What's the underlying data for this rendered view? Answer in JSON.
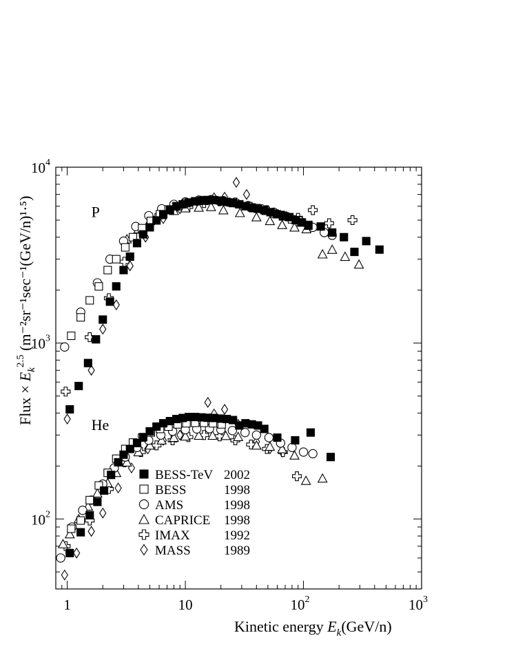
{
  "chart_data": {
    "type": "scatter",
    "title": "",
    "xlabel": {
      "text": "Kinetic energy",
      "var": "E",
      "sub": "k",
      "unit": "(GeV/n)"
    },
    "ylabel": {
      "prefix": "Flux × E",
      "sub": "k",
      "sup": "2.5",
      "units": "(m⁻²sr⁻¹sec⁻¹(GeV/n)¹·⁵)"
    },
    "x_scale": "log",
    "y_scale": "log",
    "xlim": [
      0.8,
      1000
    ],
    "ylim": [
      40,
      10000
    ],
    "x_tick_labels": [
      {
        "value": 1,
        "base": "1",
        "exp": ""
      },
      {
        "value": 10,
        "base": "10",
        "exp": ""
      },
      {
        "value": 100,
        "base": "10",
        "exp": "2"
      },
      {
        "value": 1000,
        "base": "10",
        "exp": "3"
      }
    ],
    "y_tick_labels": [
      {
        "value": 100,
        "base": "10",
        "exp": "2"
      },
      {
        "value": 1000,
        "base": "10",
        "exp": "3"
      },
      {
        "value": 10000,
        "base": "10",
        "exp": "4"
      }
    ],
    "grid": false,
    "legend_position": "lower-left",
    "annotations": [
      {
        "text": "P",
        "x": 1.6,
        "y": 5200
      },
      {
        "text": "He",
        "x": 1.6,
        "y": 320
      }
    ],
    "series": [
      {
        "name": "BESS-TeV",
        "year": "2002",
        "marker": "filled-square",
        "points": [
          [
            1.05,
            420
          ],
          [
            1.25,
            570
          ],
          [
            1.5,
            770
          ],
          [
            1.75,
            1050
          ],
          [
            2.0,
            1360
          ],
          [
            2.3,
            1720
          ],
          [
            2.6,
            2100
          ],
          [
            3.0,
            2600
          ],
          [
            3.4,
            3100
          ],
          [
            3.9,
            3700
          ],
          [
            4.4,
            4150
          ],
          [
            5.0,
            4550
          ],
          [
            5.7,
            4980
          ],
          [
            6.5,
            5400
          ],
          [
            7.4,
            5700
          ],
          [
            8.4,
            6000
          ],
          [
            9.5,
            6150
          ],
          [
            10.7,
            6300
          ],
          [
            12.1,
            6400
          ],
          [
            13.7,
            6450
          ],
          [
            15.5,
            6500
          ],
          [
            17.5,
            6500
          ],
          [
            19.8,
            6450
          ],
          [
            22.4,
            6350
          ],
          [
            25.3,
            6250
          ],
          [
            28.6,
            6150
          ],
          [
            32.3,
            6000
          ],
          [
            36.5,
            5900
          ],
          [
            41.2,
            5800
          ],
          [
            46.6,
            5700
          ],
          [
            52.6,
            5550
          ],
          [
            59.5,
            5400
          ],
          [
            67.2,
            5300
          ],
          [
            76,
            5200
          ],
          [
            86,
            5000
          ],
          [
            97,
            4850
          ],
          [
            110,
            4650
          ],
          [
            140,
            4600
          ],
          [
            175,
            4250
          ],
          [
            220,
            4000
          ],
          [
            270,
            3300
          ],
          [
            340,
            3800
          ],
          [
            440,
            3400
          ],
          [
            1.05,
            64
          ],
          [
            1.3,
            84
          ],
          [
            1.55,
            105
          ],
          [
            1.8,
            125
          ],
          [
            2.05,
            145
          ],
          [
            2.35,
            178
          ],
          [
            2.7,
            210
          ],
          [
            3.0,
            232
          ],
          [
            3.4,
            250
          ],
          [
            3.9,
            270
          ],
          [
            4.4,
            292
          ],
          [
            5.0,
            315
          ],
          [
            5.7,
            335
          ],
          [
            6.5,
            350
          ],
          [
            7.4,
            360
          ],
          [
            8.4,
            370
          ],
          [
            9.5,
            375
          ],
          [
            10.7,
            380
          ],
          [
            12.1,
            380
          ],
          [
            13.7,
            378
          ],
          [
            15.5,
            376
          ],
          [
            17.5,
            375
          ],
          [
            19.8,
            372
          ],
          [
            22.4,
            370
          ],
          [
            25.3,
            365
          ],
          [
            28.6,
            340
          ],
          [
            32.3,
            350
          ],
          [
            36.5,
            345
          ],
          [
            41.2,
            340
          ],
          [
            46.6,
            325
          ],
          [
            60,
            290
          ],
          [
            85,
            280
          ],
          [
            115,
            310
          ],
          [
            170,
            225
          ]
        ]
      },
      {
        "name": "BESS",
        "year": "1998",
        "marker": "open-square",
        "points": [
          [
            1.08,
            1100
          ],
          [
            1.3,
            1400
          ],
          [
            1.55,
            1750
          ],
          [
            1.85,
            2100
          ],
          [
            2.2,
            2600
          ],
          [
            2.6,
            3000
          ],
          [
            3.1,
            3500
          ],
          [
            3.6,
            4000
          ],
          [
            4.3,
            4500
          ],
          [
            5.1,
            4950
          ],
          [
            6.1,
            5400
          ],
          [
            7.2,
            5750
          ],
          [
            8.6,
            6000
          ],
          [
            10.2,
            6250
          ],
          [
            12.1,
            6400
          ],
          [
            14.4,
            6500
          ],
          [
            17.1,
            6500
          ],
          [
            20.3,
            6400
          ],
          [
            24.1,
            6300
          ],
          [
            28.6,
            6150
          ],
          [
            34,
            6000
          ],
          [
            40,
            5850
          ],
          [
            48,
            5650
          ],
          [
            57,
            5450
          ],
          [
            67,
            5250
          ],
          [
            80,
            5050
          ],
          [
            95,
            4850
          ],
          [
            110,
            4700
          ],
          [
            1.08,
            88
          ],
          [
            1.3,
            98
          ],
          [
            1.55,
            128
          ],
          [
            1.85,
            155
          ],
          [
            2.2,
            183
          ],
          [
            2.6,
            220
          ],
          [
            3.1,
            250
          ],
          [
            3.6,
            272
          ],
          [
            4.3,
            290
          ],
          [
            5.1,
            310
          ],
          [
            6.1,
            325
          ],
          [
            7.2,
            335
          ],
          [
            8.6,
            345
          ],
          [
            10.2,
            350
          ],
          [
            12.1,
            352
          ],
          [
            14.4,
            352
          ],
          [
            17.1,
            350
          ],
          [
            20.3,
            345
          ]
        ]
      },
      {
        "name": "AMS",
        "year": "1998",
        "marker": "open-circle",
        "points": [
          [
            0.95,
            950
          ],
          [
            1.3,
            1500
          ],
          [
            1.8,
            2200
          ],
          [
            2.3,
            3000
          ],
          [
            3.0,
            3800
          ],
          [
            3.8,
            4600
          ],
          [
            4.9,
            5300
          ],
          [
            6.3,
            5800
          ],
          [
            8.0,
            6150
          ],
          [
            10,
            6350
          ],
          [
            13,
            6500
          ],
          [
            16.5,
            6550
          ],
          [
            21,
            6450
          ],
          [
            27,
            6250
          ],
          [
            34,
            6050
          ],
          [
            44,
            5800
          ],
          [
            56,
            5550
          ],
          [
            72,
            5250
          ],
          [
            93,
            4950
          ],
          [
            120,
            4550
          ],
          [
            150,
            4250
          ],
          [
            175,
            4100
          ],
          [
            0.88,
            60
          ],
          [
            1.1,
            90
          ],
          [
            1.35,
            112
          ],
          [
            1.6,
            128
          ],
          [
            2.0,
            158
          ],
          [
            2.5,
            195
          ],
          [
            3.1,
            225
          ],
          [
            3.9,
            255
          ],
          [
            4.9,
            280
          ],
          [
            6.2,
            300
          ],
          [
            7.8,
            315
          ],
          [
            10,
            322
          ],
          [
            12.5,
            325
          ],
          [
            16,
            326
          ],
          [
            20,
            322
          ],
          [
            25,
            318
          ],
          [
            32,
            310
          ],
          [
            40,
            300
          ],
          [
            51,
            290
          ],
          [
            64,
            270
          ],
          [
            80,
            255
          ],
          [
            100,
            240
          ],
          [
            120,
            235
          ]
        ]
      },
      {
        "name": "CAPRICE",
        "year": "1998",
        "marker": "open-triangle",
        "points": [
          [
            3.2,
            3900
          ],
          [
            4.0,
            4450
          ],
          [
            5.0,
            4950
          ],
          [
            6.3,
            5350
          ],
          [
            8.0,
            5650
          ],
          [
            10,
            5850
          ],
          [
            13,
            5900
          ],
          [
            16.5,
            5950
          ],
          [
            21,
            5700
          ],
          [
            29,
            5500
          ],
          [
            40,
            5200
          ],
          [
            52,
            4950
          ],
          [
            66,
            4700
          ],
          [
            84,
            4550
          ],
          [
            106,
            4450
          ],
          [
            145,
            3200
          ],
          [
            175,
            3400
          ],
          [
            225,
            3100
          ],
          [
            295,
            2800
          ],
          [
            0.92,
            72
          ],
          [
            1.05,
            82
          ],
          [
            1.25,
            100
          ],
          [
            1.5,
            118
          ],
          [
            1.8,
            140
          ],
          [
            2.2,
            160
          ],
          [
            2.6,
            183
          ],
          [
            3.2,
            210
          ],
          [
            4.0,
            240
          ],
          [
            5.0,
            262
          ],
          [
            6.3,
            280
          ],
          [
            8.0,
            290
          ],
          [
            10,
            295
          ],
          [
            13,
            298
          ],
          [
            17,
            298
          ],
          [
            22,
            297
          ],
          [
            28,
            293
          ],
          [
            40,
            262
          ],
          [
            52,
            258
          ],
          [
            66,
            250
          ],
          [
            84,
            230
          ],
          [
            105,
            165
          ],
          [
            145,
            170
          ]
        ]
      },
      {
        "name": "IMAX",
        "year": "1992",
        "marker": "open-cross",
        "points": [
          [
            0.97,
            530
          ],
          [
            1.55,
            1080
          ],
          [
            2.25,
            1800
          ],
          [
            3.05,
            2900
          ],
          [
            4.2,
            4300
          ],
          [
            5.7,
            5150
          ],
          [
            7.8,
            5700
          ],
          [
            10.6,
            5950
          ],
          [
            14.4,
            6250
          ],
          [
            19.5,
            6400
          ],
          [
            26.5,
            6300
          ],
          [
            36,
            5900
          ],
          [
            49,
            5700
          ],
          [
            67,
            5300
          ],
          [
            90,
            5150
          ],
          [
            120,
            5700
          ],
          [
            165,
            4800
          ],
          [
            260,
            5000
          ],
          [
            0.97,
            70
          ],
          [
            1.55,
            98
          ],
          [
            2.25,
            148
          ],
          [
            3.05,
            210
          ],
          [
            4.2,
            240
          ],
          [
            5.7,
            262
          ],
          [
            7.8,
            280
          ],
          [
            10.6,
            292
          ],
          [
            14.4,
            300
          ],
          [
            19.5,
            295
          ],
          [
            26.5,
            280
          ],
          [
            36,
            265
          ],
          [
            49,
            250
          ],
          [
            67,
            240
          ],
          [
            88,
            175
          ]
        ]
      },
      {
        "name": "MASS",
        "year": "1989",
        "marker": "open-diamond",
        "points": [
          [
            1.0,
            370
          ],
          [
            1.6,
            700
          ],
          [
            2.0,
            1200
          ],
          [
            2.6,
            1650
          ],
          [
            3.4,
            2750
          ],
          [
            4.6,
            4000
          ],
          [
            6.5,
            5100
          ],
          [
            9.0,
            5800
          ],
          [
            12.7,
            6300
          ],
          [
            17.5,
            6700
          ],
          [
            21.5,
            6750
          ],
          [
            27,
            8200
          ],
          [
            33,
            7000
          ],
          [
            0.95,
            48
          ],
          [
            1.2,
            64
          ],
          [
            1.6,
            85
          ],
          [
            2.0,
            108
          ],
          [
            2.7,
            150
          ],
          [
            3.5,
            195
          ],
          [
            4.8,
            250
          ],
          [
            6.5,
            280
          ],
          [
            9.0,
            300
          ],
          [
            12.7,
            340
          ],
          [
            15.5,
            460
          ],
          [
            17.5,
            395
          ],
          [
            21.5,
            420
          ],
          [
            28,
            345
          ],
          [
            40,
            275
          ],
          [
            52,
            250
          ],
          [
            66,
            240
          ]
        ]
      }
    ]
  }
}
